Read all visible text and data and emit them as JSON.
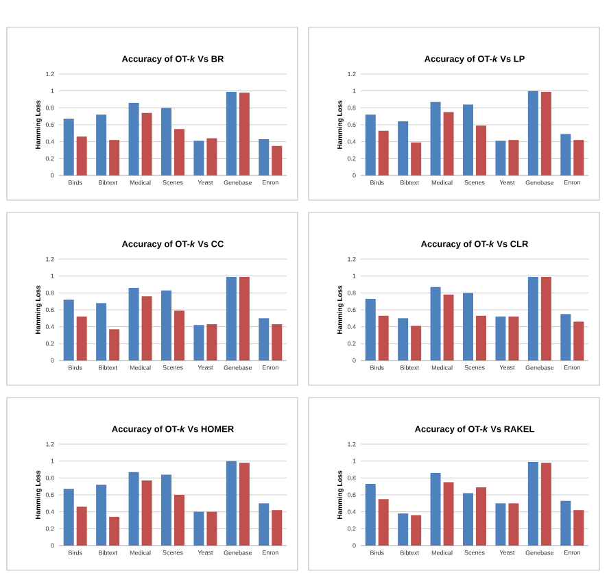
{
  "chart_data": [
    {
      "type": "bar",
      "title": "Accuracy of OT-*k* Vs BR",
      "ylabel": "Hamming Loss",
      "categories": [
        "Birds",
        "Bibtext",
        "Medical",
        "Scenes",
        "Yeast",
        "Genebase",
        "Enron"
      ],
      "series": [
        {
          "color": "#4f81bd",
          "values": [
            0.67,
            0.72,
            0.86,
            0.8,
            0.41,
            0.99,
            0.43
          ]
        },
        {
          "color": "#c0504d",
          "values": [
            0.46,
            0.42,
            0.74,
            0.55,
            0.44,
            0.98,
            0.35
          ]
        }
      ],
      "ylim": [
        0,
        1.2
      ],
      "yticks": [
        0,
        0.2,
        0.4,
        0.6,
        0.8,
        1,
        1.2
      ],
      "grid": "y"
    },
    {
      "type": "bar",
      "title": "Accuracy of OT-*k* Vs LP",
      "ylabel": "Hamming Loss",
      "categories": [
        "Birds",
        "Bibtext",
        "Medical",
        "Scenes",
        "Yeast",
        "Genebase",
        "Enron"
      ],
      "series": [
        {
          "color": "#4f81bd",
          "values": [
            0.72,
            0.64,
            0.87,
            0.84,
            0.41,
            1.0,
            0.49
          ]
        },
        {
          "color": "#c0504d",
          "values": [
            0.53,
            0.39,
            0.75,
            0.59,
            0.42,
            0.99,
            0.42
          ]
        }
      ],
      "ylim": [
        0,
        1.2
      ],
      "yticks": [
        0,
        0.2,
        0.4,
        0.6,
        0.8,
        1,
        1.2
      ],
      "grid": "y"
    },
    {
      "type": "bar",
      "title": "Accuracy of OT-*k* Vs CC",
      "ylabel": "Hamming Loss",
      "categories": [
        "Birds",
        "Bibtext",
        "Medical",
        "Scenes",
        "Yeast",
        "Genebase",
        "Enron"
      ],
      "series": [
        {
          "color": "#4f81bd",
          "values": [
            0.72,
            0.68,
            0.86,
            0.83,
            0.42,
            0.99,
            0.5
          ]
        },
        {
          "color": "#c0504d",
          "values": [
            0.52,
            0.37,
            0.76,
            0.59,
            0.43,
            0.99,
            0.43
          ]
        }
      ],
      "ylim": [
        0,
        1.2
      ],
      "yticks": [
        0,
        0.2,
        0.4,
        0.6,
        0.8,
        1,
        1.2
      ],
      "grid": "y"
    },
    {
      "type": "bar",
      "title": "Accuracy of OT-*k* Vs CLR",
      "ylabel": "Hamming Loss",
      "categories": [
        "Birds",
        "Bibtext",
        "Medical",
        "Scenes",
        "Yeast",
        "Genebase",
        "Enron"
      ],
      "series": [
        {
          "color": "#4f81bd",
          "values": [
            0.73,
            0.5,
            0.87,
            0.8,
            0.52,
            0.99,
            0.55
          ]
        },
        {
          "color": "#c0504d",
          "values": [
            0.53,
            0.41,
            0.78,
            0.53,
            0.52,
            0.99,
            0.46
          ]
        }
      ],
      "ylim": [
        0,
        1.2
      ],
      "yticks": [
        0,
        0.2,
        0.4,
        0.6,
        0.8,
        1,
        1.2
      ],
      "grid": "y"
    },
    {
      "type": "bar",
      "title": "Accuracy of OT-*k* Vs HOMER",
      "ylabel": "Hamming Loss",
      "categories": [
        "Birds",
        "Bibtext",
        "Medical",
        "Scenes",
        "Yeast",
        "Genebase",
        "Enron"
      ],
      "series": [
        {
          "color": "#4f81bd",
          "values": [
            0.67,
            0.72,
            0.87,
            0.84,
            0.4,
            1.0,
            0.5
          ]
        },
        {
          "color": "#c0504d",
          "values": [
            0.46,
            0.34,
            0.77,
            0.6,
            0.4,
            0.98,
            0.42
          ]
        }
      ],
      "ylim": [
        0,
        1.2
      ],
      "yticks": [
        0,
        0.2,
        0.4,
        0.6,
        0.8,
        1,
        1.2
      ],
      "grid": "y"
    },
    {
      "type": "bar",
      "title": "Accuracy of OT-*k* Vs RAKEL",
      "ylabel": "Hamming Loss",
      "categories": [
        "Birds",
        "Bibtext",
        "Medical",
        "Scenes",
        "Yeast",
        "Genebase",
        "Enron"
      ],
      "series": [
        {
          "color": "#4f81bd",
          "values": [
            0.73,
            0.38,
            0.86,
            0.62,
            0.5,
            0.99,
            0.53
          ]
        },
        {
          "color": "#c0504d",
          "values": [
            0.55,
            0.36,
            0.75,
            0.69,
            0.5,
            0.98,
            0.42
          ]
        }
      ],
      "ylim": [
        0,
        1.2
      ],
      "yticks": [
        0,
        0.2,
        0.4,
        0.6,
        0.8,
        1,
        1.2
      ],
      "grid": "y"
    }
  ]
}
